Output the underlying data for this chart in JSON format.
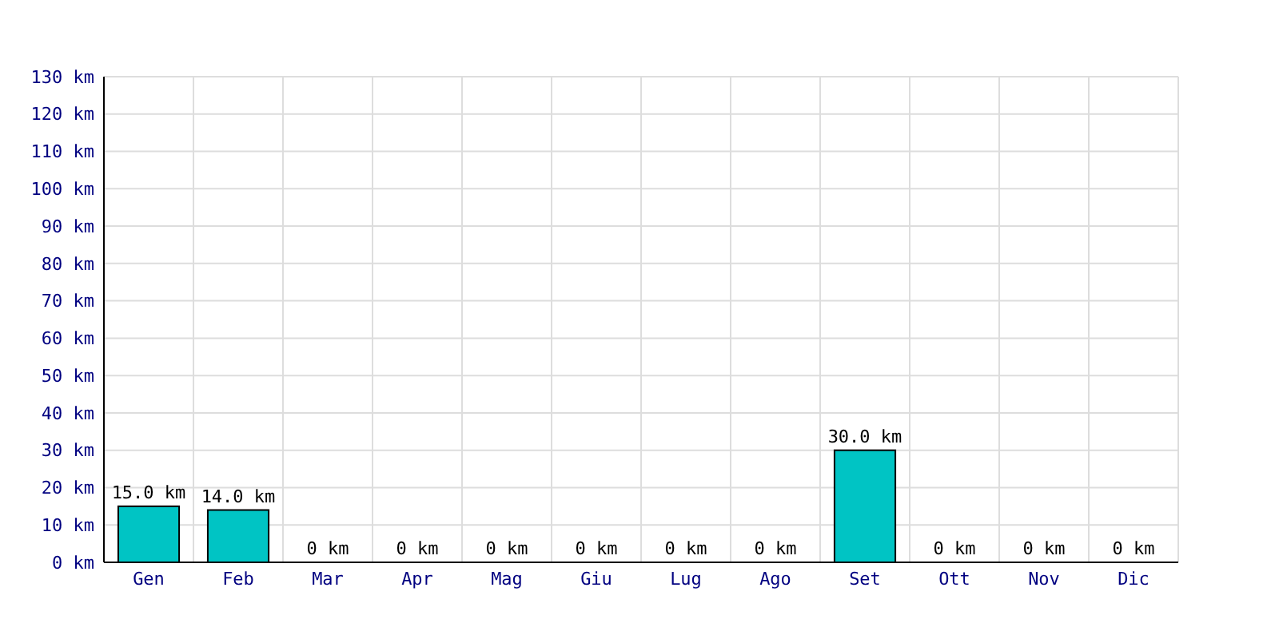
{
  "chart_data": {
    "type": "bar",
    "categories": [
      "Gen",
      "Feb",
      "Mar",
      "Apr",
      "Mag",
      "Giu",
      "Lug",
      "Ago",
      "Set",
      "Ott",
      "Nov",
      "Dic"
    ],
    "values": [
      15,
      14,
      0,
      0,
      0,
      0,
      0,
      0,
      30,
      0,
      0,
      0
    ],
    "value_labels": [
      "15.0 km",
      "14.0 km",
      "0 km",
      "0 km",
      "0 km",
      "0 km",
      "0 km",
      "0 km",
      "30.0 km",
      "0 km",
      "0 km",
      "0 km"
    ],
    "color": "#00c4c4",
    "ylim": [
      0,
      130
    ],
    "yticks": [
      {
        "value": 0,
        "label": "0 km"
      },
      {
        "value": 10,
        "label": "10 km"
      },
      {
        "value": 20,
        "label": "20 km"
      },
      {
        "value": 30,
        "label": "30 km"
      },
      {
        "value": 40,
        "label": "40 km"
      },
      {
        "value": 50,
        "label": "50 km"
      },
      {
        "value": 60,
        "label": "60 km"
      },
      {
        "value": 70,
        "label": "70 km"
      },
      {
        "value": 80,
        "label": "80 km"
      },
      {
        "value": 90,
        "label": "90 km"
      },
      {
        "value": 100,
        "label": "100 km"
      },
      {
        "value": 110,
        "label": "110 km"
      },
      {
        "value": 120,
        "label": "120 km"
      },
      {
        "value": 130,
        "label": "130 km"
      }
    ],
    "grid": true
  }
}
